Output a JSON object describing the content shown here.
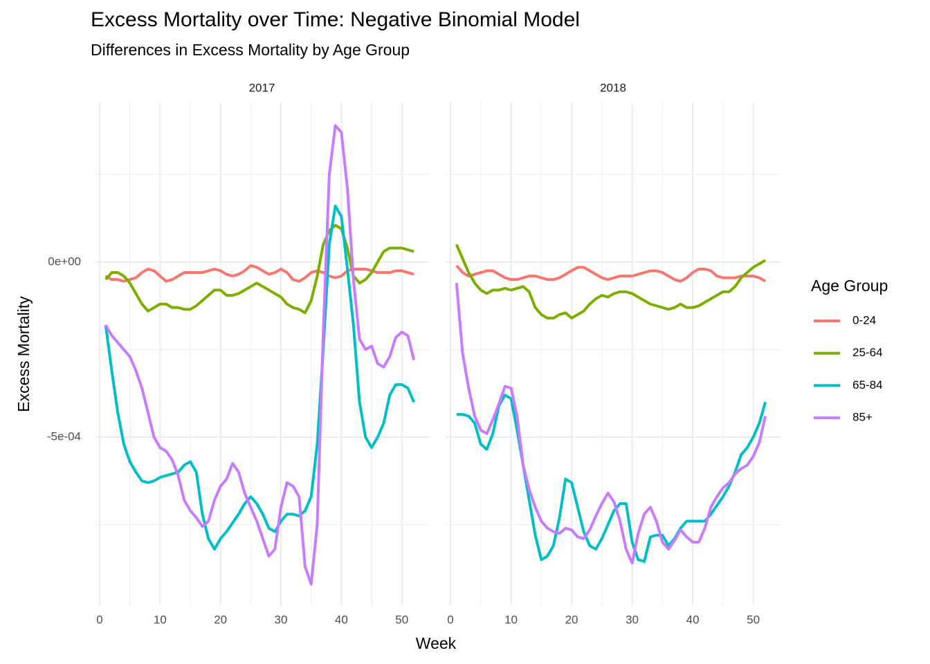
{
  "chart_data": {
    "type": "line",
    "title": "Excess Mortality over Time: Negative Binomial Model",
    "subtitle": "Differences in Excess Mortality by Age Group",
    "x_label": "Week",
    "y_label": "Excess Mortality",
    "legend_title": "Age Group",
    "grid": true,
    "xlim": [
      -0.8,
      54.5
    ],
    "xticks": [
      0,
      10,
      20,
      30,
      40,
      50
    ],
    "ylim": [
      -0.00098,
      0.000456
    ],
    "yticks": [
      {
        "value": -0.0005,
        "label": "-5e-04"
      },
      {
        "value": 0,
        "label": "0e+00"
      }
    ],
    "x": [
      1,
      2,
      3,
      4,
      5,
      6,
      7,
      8,
      9,
      10,
      11,
      12,
      13,
      14,
      15,
      16,
      17,
      18,
      19,
      20,
      21,
      22,
      23,
      24,
      25,
      26,
      27,
      28,
      29,
      30,
      31,
      32,
      33,
      34,
      35,
      36,
      37,
      38,
      39,
      40,
      41,
      42,
      43,
      44,
      45,
      46,
      47,
      48,
      49,
      50,
      51,
      52
    ],
    "series": [
      {
        "name": "0-24",
        "color": "#f8766d"
      },
      {
        "name": "25-64",
        "color": "#7cae00"
      },
      {
        "name": "65-84",
        "color": "#00bfc4"
      },
      {
        "name": "85+",
        "color": "#c77cff"
      }
    ],
    "facets": [
      {
        "label": "2017",
        "values": [
          [
            -4e-05,
            -5e-05,
            -5e-05,
            -5.5e-05,
            -5e-05,
            -4.5e-05,
            -3e-05,
            -2e-05,
            -2.5e-05,
            -4e-05,
            -5.5e-05,
            -5e-05,
            -4e-05,
            -3e-05,
            -3e-05,
            -3e-05,
            -3e-05,
            -2.5e-05,
            -2e-05,
            -2.5e-05,
            -3.5e-05,
            -4e-05,
            -3.5e-05,
            -2.5e-05,
            -1e-05,
            -1.5e-05,
            -2.5e-05,
            -3.5e-05,
            -3e-05,
            -2e-05,
            -3e-05,
            -5e-05,
            -5.5e-05,
            -4.5e-05,
            -3e-05,
            -2.5e-05,
            -3e-05,
            -4e-05,
            -4.5e-05,
            -4e-05,
            -2.5e-05,
            -2e-05,
            -2e-05,
            -2e-05,
            -2.5e-05,
            -3e-05,
            -3e-05,
            -3e-05,
            -2.5e-05,
            -2.5e-05,
            -3e-05,
            -3.5e-05
          ],
          [
            -5e-05,
            -3e-05,
            -3e-05,
            -4e-05,
            -6e-05,
            -9e-05,
            -0.00012,
            -0.00014,
            -0.00013,
            -0.00012,
            -0.00012,
            -0.00013,
            -0.00013,
            -0.000135,
            -0.000135,
            -0.000125,
            -0.00011,
            -9.5e-05,
            -8e-05,
            -8e-05,
            -9.5e-05,
            -9.5e-05,
            -9e-05,
            -8e-05,
            -7e-05,
            -6e-05,
            -7e-05,
            -8e-05,
            -9e-05,
            -0.0001,
            -0.00012,
            -0.00013,
            -0.000135,
            -0.000145,
            -0.00011,
            -4e-05,
            5e-05,
            9e-05,
            0.000105,
            9.5e-05,
            4e-05,
            -4e-05,
            -6e-05,
            -5e-05,
            -3e-05,
            0,
            3e-05,
            4e-05,
            4e-05,
            4e-05,
            3.5e-05,
            3e-05
          ],
          [
            -0.00018,
            -0.00031,
            -0.00043,
            -0.00052,
            -0.00057,
            -0.0006,
            -0.000625,
            -0.00063,
            -0.000625,
            -0.000615,
            -0.00061,
            -0.000605,
            -0.0006,
            -0.00058,
            -0.00057,
            -0.0006,
            -0.00072,
            -0.00079,
            -0.00082,
            -0.00079,
            -0.00077,
            -0.000745,
            -0.00072,
            -0.00069,
            -0.00067,
            -0.00069,
            -0.00072,
            -0.00076,
            -0.00077,
            -0.00074,
            -0.00072,
            -0.00072,
            -0.000725,
            -0.00071,
            -0.00067,
            -0.00052,
            -0.00025,
            5e-05,
            0.00016,
            0.00013,
            -2e-05,
            -0.00018,
            -0.0004,
            -0.0005,
            -0.00053,
            -0.0005,
            -0.00046,
            -0.00038,
            -0.00035,
            -0.00035,
            -0.00036,
            -0.0004
          ],
          [
            -0.00018,
            -0.00021,
            -0.00023,
            -0.00025,
            -0.00027,
            -0.00031,
            -0.00036,
            -0.00043,
            -0.0005,
            -0.00053,
            -0.00054,
            -0.000565,
            -0.00061,
            -0.00068,
            -0.00071,
            -0.00073,
            -0.000755,
            -0.00074,
            -0.00068,
            -0.00064,
            -0.00062,
            -0.000575,
            -0.0006,
            -0.00066,
            -0.0007,
            -0.00074,
            -0.00079,
            -0.00084,
            -0.00082,
            -0.0007,
            -0.00063,
            -0.00064,
            -0.00067,
            -0.00087,
            -0.00092,
            -0.00075,
            -0.0002,
            0.00025,
            0.00039,
            0.00037,
            0.00021,
            -5e-05,
            -0.00022,
            -0.00025,
            -0.00024,
            -0.00029,
            -0.0003,
            -0.00027,
            -0.000215,
            -0.0002,
            -0.00021,
            -0.00028
          ]
        ]
      },
      {
        "label": "2018",
        "values": [
          [
            -1e-05,
            -3e-05,
            -4e-05,
            -3.5e-05,
            -3e-05,
            -2.5e-05,
            -2.5e-05,
            -3.5e-05,
            -4.5e-05,
            -5e-05,
            -5e-05,
            -4.5e-05,
            -4e-05,
            -4e-05,
            -4.5e-05,
            -5e-05,
            -5e-05,
            -4.5e-05,
            -3.5e-05,
            -2.5e-05,
            -1.5e-05,
            -1.5e-05,
            -2.5e-05,
            -3.5e-05,
            -4.5e-05,
            -5e-05,
            -4.5e-05,
            -4e-05,
            -4e-05,
            -4e-05,
            -3.5e-05,
            -3e-05,
            -2.5e-05,
            -2.5e-05,
            -3e-05,
            -4e-05,
            -5e-05,
            -5.5e-05,
            -4.5e-05,
            -3e-05,
            -2e-05,
            -2e-05,
            -2.5e-05,
            -4e-05,
            -4.5e-05,
            -4.5e-05,
            -4.5e-05,
            -4e-05,
            -4e-05,
            -4e-05,
            -4.5e-05,
            -5.5e-05
          ],
          [
            5e-05,
            1e-05,
            -3e-05,
            -6e-05,
            -8e-05,
            -9e-05,
            -8e-05,
            -8e-05,
            -7.5e-05,
            -8e-05,
            -7.5e-05,
            -7e-05,
            -8.5e-05,
            -0.00013,
            -0.00015,
            -0.00016,
            -0.00016,
            -0.00015,
            -0.000145,
            -0.00016,
            -0.00015,
            -0.00014,
            -0.00012,
            -0.000105,
            -9.5e-05,
            -0.0001,
            -9e-05,
            -8.5e-05,
            -8.5e-05,
            -9e-05,
            -0.0001,
            -0.00011,
            -0.00012,
            -0.000125,
            -0.00013,
            -0.000135,
            -0.00013,
            -0.00012,
            -0.00013,
            -0.00013,
            -0.000125,
            -0.000115,
            -0.000105,
            -9.5e-05,
            -8.5e-05,
            -8.5e-05,
            -7e-05,
            -4.5e-05,
            -3e-05,
            -1.5e-05,
            -5e-06,
            5e-06
          ],
          [
            -0.000435,
            -0.000435,
            -0.00044,
            -0.00046,
            -0.00052,
            -0.000535,
            -0.00049,
            -0.00041,
            -0.00038,
            -0.00039,
            -0.00048,
            -0.00058,
            -0.00068,
            -0.00078,
            -0.00085,
            -0.00084,
            -0.00081,
            -0.00073,
            -0.00062,
            -0.00063,
            -0.0007,
            -0.00077,
            -0.00081,
            -0.00082,
            -0.00079,
            -0.00075,
            -0.00071,
            -0.00069,
            -0.00069,
            -0.0008,
            -0.00085,
            -0.000855,
            -0.000785,
            -0.00078,
            -0.00078,
            -0.00081,
            -0.00079,
            -0.00076,
            -0.00074,
            -0.00074,
            -0.00074,
            -0.00074,
            -0.00072,
            -0.000695,
            -0.00067,
            -0.00064,
            -0.0006,
            -0.00055,
            -0.00053,
            -0.0005,
            -0.00046,
            -0.0004
          ],
          [
            -6e-05,
            -0.00026,
            -0.00036,
            -0.00044,
            -0.00048,
            -0.00049,
            -0.00045,
            -0.000405,
            -0.000355,
            -0.00036,
            -0.00044,
            -0.00058,
            -0.00065,
            -0.0007,
            -0.00074,
            -0.00076,
            -0.00077,
            -0.000775,
            -0.00076,
            -0.000765,
            -0.000785,
            -0.00079,
            -0.000765,
            -0.000725,
            -0.00069,
            -0.00066,
            -0.000685,
            -0.00074,
            -0.00082,
            -0.00086,
            -0.000775,
            -0.00072,
            -0.0007,
            -0.00074,
            -0.0008,
            -0.00082,
            -0.000795,
            -0.000765,
            -0.000785,
            -0.0008,
            -0.0008,
            -0.00076,
            -0.0007,
            -0.00067,
            -0.000645,
            -0.00063,
            -0.000605,
            -0.00059,
            -0.00058,
            -0.000555,
            -0.000515,
            -0.00044
          ]
        ]
      }
    ]
  }
}
